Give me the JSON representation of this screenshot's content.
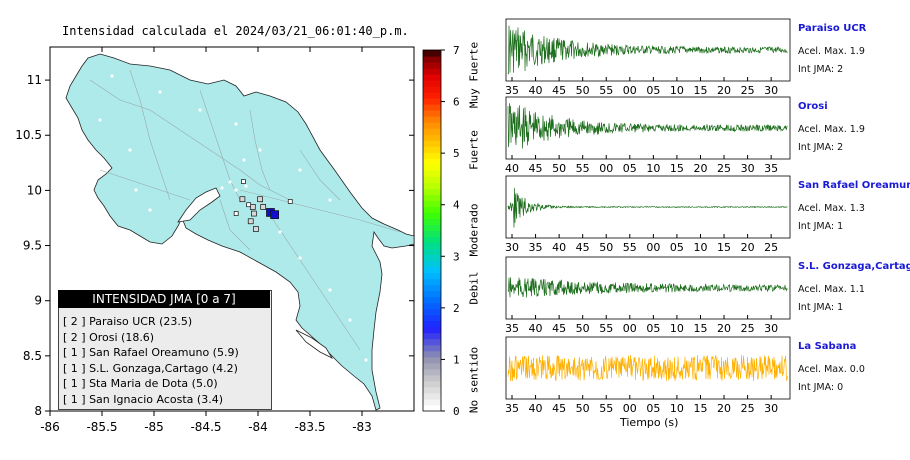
{
  "map": {
    "title": "Intensidad calculada el 2024/03/21_06:01:40_p.m.",
    "legend_title": "INTENSIDAD JMA [0 a 7]",
    "stations": [
      "[ 2 ]  Paraiso UCR (23.5)",
      "[ 2 ]  Orosi (18.6)",
      "[ 1 ]  San Rafael Oreamuno (5.9)",
      "[ 1 ]  S.L. Gonzaga,Cartago (4.2)",
      "[ 1 ]  Sta Maria de Dota (5.0)",
      "[ 1 ]  San Ignacio Acosta (3.4)"
    ]
  },
  "colorbar": {
    "ticks": [
      "0",
      "1",
      "2",
      "3",
      "4",
      "5",
      "6",
      "7"
    ],
    "labels": [
      "No sentido",
      "Debil",
      "Moderado",
      "Fuerte",
      "Muy Fuerte"
    ]
  },
  "traces": [
    {
      "name": "Paraiso UCR",
      "acel": "Acel. Max. 1.9",
      "int": "Int JMA: 2"
    },
    {
      "name": "Orosi",
      "acel": "Acel. Max. 1.9",
      "int": "Int JMA: 2"
    },
    {
      "name": "San Rafael Oreamuno",
      "acel": "Acel. Max. 1.3",
      "int": "Int JMA: 1"
    },
    {
      "name": "S.L. Gonzaga,Cartago",
      "acel": "Acel. Max. 1.1",
      "int": "Int JMA: 1"
    },
    {
      "name": "La Sabana",
      "acel": "Acel. Max. 0.0",
      "int": "Int JMA: 0"
    }
  ],
  "time_label": "Tiempo (s)",
  "colors": {
    "land": "#aeeaea",
    "trace_green": "#1d6e1d",
    "trace_orange": "#ffb000",
    "name_blue": "#1a1ad6",
    "marker_blue": "#1010cc"
  },
  "chart_data": [
    {
      "type": "scatter",
      "title": "Intensidad calculada el 2024/03/21_06:01:40_p.m.",
      "xlim": [
        -86,
        -82.5
      ],
      "ylim": [
        8,
        11.3
      ],
      "x_ticks": [
        "-86",
        "-85.5",
        "-85",
        "-84.5",
        "-84",
        "-83.5",
        "-83"
      ],
      "y_ticks": [
        "8",
        "8.5",
        "9",
        "9.5",
        "10",
        "10.5",
        "11"
      ],
      "station_markers": [
        {
          "lon": -84.05,
          "lat": 9.85,
          "int": 1
        },
        {
          "lon": -83.95,
          "lat": 9.85,
          "int": 1
        },
        {
          "lon": -83.88,
          "lat": 9.8,
          "int": 2
        },
        {
          "lon": -83.84,
          "lat": 9.78,
          "int": 2
        },
        {
          "lon": -84.15,
          "lat": 9.92,
          "int": 1
        },
        {
          "lon": -84.04,
          "lat": 9.79,
          "int": 1
        },
        {
          "lon": -83.98,
          "lat": 9.92,
          "int": 1
        },
        {
          "lon": -84.07,
          "lat": 9.72,
          "int": 1
        },
        {
          "lon": -84.02,
          "lat": 9.65,
          "int": 1
        },
        {
          "lon": -84.09,
          "lat": 9.87,
          "int": 0
        },
        {
          "lon": -84.21,
          "lat": 9.79,
          "int": 0
        },
        {
          "lon": -83.69,
          "lat": 9.9,
          "int": 0
        },
        {
          "lon": -84.14,
          "lat": 10.08,
          "int": 0
        }
      ]
    },
    {
      "type": "line",
      "series": [
        {
          "name": "Paraiso UCR",
          "x_ticks": [
            "35",
            "40",
            "45",
            "50",
            "55",
            "00",
            "05",
            "10",
            "15",
            "20",
            "25",
            "30"
          ]
        },
        {
          "name": "Orosi",
          "x_ticks": [
            "40",
            "45",
            "50",
            "55",
            "00",
            "05",
            "10",
            "15",
            "20",
            "25",
            "30",
            "35"
          ]
        },
        {
          "name": "San Rafael Oreamuno",
          "x_ticks": [
            "30",
            "35",
            "40",
            "45",
            "50",
            "55",
            "00",
            "05",
            "10",
            "15",
            "20",
            "25"
          ]
        },
        {
          "name": "S.L. Gonzaga,Cartago",
          "x_ticks": [
            "35",
            "40",
            "45",
            "50",
            "55",
            "00",
            "05",
            "10",
            "15",
            "20",
            "25",
            "30"
          ]
        },
        {
          "name": "La Sabana",
          "x_ticks": [
            "35",
            "40",
            "45",
            "50",
            "55",
            "00",
            "05",
            "10",
            "15",
            "20",
            "25",
            "30"
          ]
        }
      ],
      "xlabel": "Tiempo (s)"
    }
  ]
}
